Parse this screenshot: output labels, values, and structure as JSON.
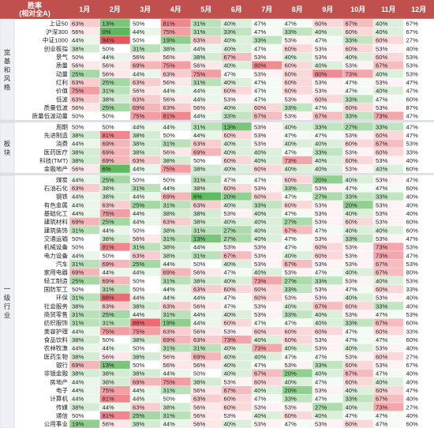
{
  "header": {
    "title_line1": "胜率",
    "title_line2": "(相对全A)",
    "months": [
      "1月",
      "2月",
      "3月",
      "4月",
      "5月",
      "6月",
      "7月",
      "8月",
      "9月",
      "10月",
      "11月",
      "12月"
    ]
  },
  "colors": {
    "header_bg": "#c0504d",
    "header_text": "#ffffff",
    "high": "#e8515a",
    "mid": "#ffffff",
    "low": "#5cb85c",
    "last_col": "#ffffff"
  },
  "chart_data": {
    "type": "heatmap",
    "value_unit": "%",
    "color_scale": {
      "min": 0,
      "mid": 50,
      "max": 100,
      "low_color": "green",
      "high_color": "red"
    },
    "groups": [
      {
        "label": "宽基和风格",
        "rows": [
          {
            "name": "上证50",
            "values": [
              63,
              13,
              50,
              81,
              31,
              40,
              47,
              47,
              60,
              67,
              40,
              67
            ]
          },
          {
            "name": "沪深300",
            "values": [
              56,
              0,
              44,
              75,
              31,
              33,
              47,
              33,
              40,
              60,
              40,
              67
            ]
          },
          {
            "name": "中证1000",
            "values": [
              44,
              94,
              50,
              19,
              63,
              40,
              33,
              53,
              47,
              33,
              60,
              27
            ]
          },
          {
            "name": "创业板指",
            "values": [
              38,
              50,
              31,
              38,
              44,
              40,
              47,
              60,
              53,
              60,
              53,
              40
            ]
          },
          {
            "name": "景气",
            "values": [
              50,
              44,
              56,
              56,
              38,
              67,
              53,
              40,
              53,
              40,
              60,
              53
            ]
          },
          {
            "name": "质量",
            "values": [
              56,
              56,
              69,
              75,
              56,
              40,
              80,
              60,
              40,
              53,
              67,
              53
            ]
          },
          {
            "name": "动量",
            "values": [
              25,
              56,
              44,
              63,
              75,
              47,
              53,
              60,
              80,
              73,
              40,
              53
            ]
          },
          {
            "name": "红利",
            "values": [
              63,
              25,
              63,
              56,
              31,
              40,
              47,
              60,
              53,
              47,
              53,
              47
            ]
          },
          {
            "name": "价值",
            "values": [
              75,
              31,
              56,
              44,
              44,
              60,
              47,
              60,
              53,
              47,
              40,
              47
            ]
          },
          {
            "name": "低波",
            "values": [
              63,
              38,
              63,
              56,
              44,
              53,
              47,
              53,
              60,
              33,
              47,
              60
            ]
          },
          {
            "name": "质量低波",
            "values": [
              56,
              25,
              69,
              63,
              56,
              40,
              60,
              33,
              47,
              60,
              53,
              87
            ]
          },
          {
            "name": "质量低波动量",
            "values": [
              50,
              50,
              75,
              81,
              44,
              33,
              67,
              53,
              67,
              33,
              73,
              47
            ]
          }
        ]
      },
      {
        "label": "板块",
        "rows": [
          {
            "name": "周期",
            "values": [
              50,
              50,
              44,
              44,
              31,
              13,
              53,
              40,
              33,
              27,
              33,
              47
            ]
          },
          {
            "name": "先进制造",
            "values": [
              38,
              81,
              38,
              50,
              44,
              60,
              53,
              47,
              47,
              53,
              60,
              47
            ]
          },
          {
            "name": "消费",
            "values": [
              44,
              69,
              38,
              31,
              63,
              40,
              53,
              40,
              40,
              60,
              67,
              53
            ]
          },
          {
            "name": "医药医疗",
            "values": [
              38,
              69,
              38,
              56,
              69,
              40,
              40,
              47,
              33,
              53,
              60,
              33
            ]
          },
          {
            "name": "科技(TMT)",
            "values": [
              38,
              69,
              63,
              38,
              50,
              60,
              40,
              73,
              40,
              60,
              53,
              40
            ]
          },
          {
            "name": "金融地产",
            "values": [
              56,
              6,
              44,
              75,
              38,
              40,
              60,
              40,
              40,
              53,
              40,
              60
            ]
          }
        ]
      },
      {
        "label": "一级行业",
        "rows": [
          {
            "name": "煤炭",
            "values": [
              44,
              25,
              50,
              50,
              31,
              47,
              47,
              60,
              20,
              40,
              53,
              47
            ]
          },
          {
            "name": "石油石化",
            "values": [
              63,
              38,
              31,
              44,
              38,
              60,
              53,
              33,
              53,
              47,
              47,
              60
            ]
          },
          {
            "name": "钢铁",
            "values": [
              44,
              38,
              44,
              69,
              6,
              20,
              60,
              47,
              27,
              33,
              33,
              40
            ]
          },
          {
            "name": "有色金属",
            "values": [
              44,
              63,
              25,
              31,
              63,
              40,
              33,
              60,
              53,
              20,
              53,
              40
            ]
          },
          {
            "name": "基础化工",
            "values": [
              44,
              75,
              44,
              38,
              38,
              53,
              40,
              47,
              53,
              40,
              53,
              40
            ]
          },
          {
            "name": "建筑材料",
            "values": [
              69,
              25,
              44,
              63,
              38,
              40,
              40,
              27,
              53,
              60,
              53,
              60
            ]
          },
          {
            "name": "建筑装饰",
            "values": [
              31,
              44,
              50,
              38,
              31,
              27,
              40,
              67,
              47,
              40,
              40,
              60
            ]
          },
          {
            "name": "交通运输",
            "values": [
              50,
              38,
              56,
              31,
              13,
              27,
              40,
              47,
              53,
              33,
              53,
              47
            ]
          },
          {
            "name": "机械设备",
            "values": [
              50,
              81,
              31,
              38,
              44,
              53,
              53,
              47,
              60,
              53,
              73,
              53
            ]
          },
          {
            "name": "电力设备",
            "values": [
              44,
              50,
              63,
              38,
              31,
              67,
              53,
              40,
              60,
              53,
              73,
              47
            ]
          },
          {
            "name": "汽车",
            "values": [
              31,
              69,
              25,
              44,
              50,
              40,
              53,
              67,
              53,
              53,
              67,
              53
            ]
          },
          {
            "name": "家用电器",
            "values": [
              69,
              44,
              44,
              69,
              56,
              47,
              40,
              53,
              47,
              40,
              67,
              80
            ]
          },
          {
            "name": "轻工制造",
            "values": [
              25,
              69,
              50,
              31,
              38,
              40,
              73,
              27,
              33,
              53,
              40,
              53
            ]
          },
          {
            "name": "国防军工",
            "values": [
              50,
              31,
              50,
              44,
              63,
              60,
              60,
              33,
              53,
              47,
              60,
              33
            ]
          },
          {
            "name": "环保",
            "values": [
              31,
              88,
              44,
              44,
              44,
              47,
              60,
              53,
              53,
              40,
              53,
              40
            ]
          },
          {
            "name": "社会服务",
            "values": [
              38,
              63,
              38,
              63,
              56,
              47,
              53,
              40,
              67,
              60,
              33,
              40
            ]
          },
          {
            "name": "商贸零售",
            "values": [
              31,
              25,
              44,
              31,
              44,
              40,
              53,
              33,
              40,
              53,
              47,
              53
            ]
          },
          {
            "name": "纺织服饰",
            "values": [
              31,
              31,
              88,
              19,
              44,
              60,
              47,
              47,
              40,
              33,
              67,
              60
            ]
          },
          {
            "name": "美容护理",
            "values": [
              44,
              75,
              75,
              63,
              56,
              53,
              60,
              60,
              60,
              47,
              60,
              33
            ]
          },
          {
            "name": "食品饮料",
            "values": [
              38,
              50,
              38,
              69,
              63,
              73,
              40,
              60,
              53,
              47,
              47,
              60
            ]
          },
          {
            "name": "农林牧渔",
            "values": [
              44,
              44,
              50,
              31,
              31,
              40,
              73,
              40,
              53,
              40,
              53,
              40
            ]
          },
          {
            "name": "医药生物",
            "values": [
              38,
              56,
              38,
              56,
              69,
              40,
              40,
              47,
              47,
              53,
              60,
              27
            ]
          },
          {
            "name": "银行",
            "values": [
              69,
              13,
              50,
              56,
              56,
              40,
              47,
              53,
              33,
              60,
              53,
              67
            ]
          },
          {
            "name": "非银金融",
            "values": [
              38,
              38,
              38,
              44,
              50,
              40,
              67,
              20,
              40,
              67,
              47,
              40
            ]
          },
          {
            "name": "房地产",
            "values": [
              44,
              38,
              69,
              75,
              38,
              53,
              60,
              40,
              47,
              60,
              40,
              40
            ]
          },
          {
            "name": "电子",
            "values": [
              44,
              75,
              44,
              31,
              56,
              67,
              40,
              20,
              53,
              40,
              60,
              47
            ]
          },
          {
            "name": "计算机",
            "values": [
              44,
              81,
              44,
              50,
              63,
              60,
              47,
              33,
              47,
              33,
              67,
              40
            ]
          },
          {
            "name": "传媒",
            "values": [
              38,
              44,
              63,
              38,
              56,
              60,
              53,
              53,
              27,
              40,
              73,
              27
            ]
          },
          {
            "name": "通信",
            "values": [
              50,
              81,
              25,
              31,
              56,
              53,
              40,
              60,
              40,
              47,
              47,
              40
            ]
          },
          {
            "name": "公用事业",
            "values": [
              19,
              56,
              38,
              44,
              56,
              40,
              53,
              47,
              53,
              60,
              47,
              60
            ]
          }
        ]
      }
    ]
  }
}
